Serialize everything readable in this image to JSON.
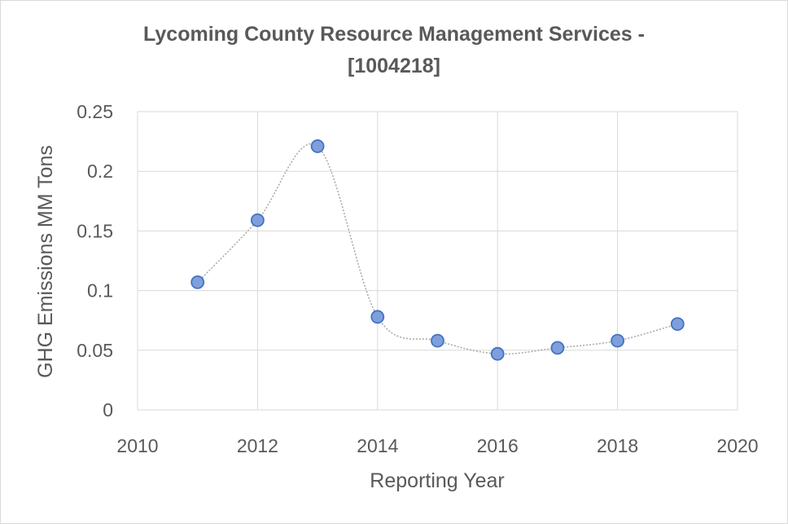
{
  "chart_data": {
    "type": "scatter",
    "title_line1": "Lycoming County Resource Management Services -",
    "title_line2": "[1004218]",
    "xlabel": "Reporting Year",
    "ylabel": "GHG Emissions MM Tons",
    "xlim": [
      2010,
      2020
    ],
    "ylim": [
      0,
      0.25
    ],
    "x_ticks": [
      "2010",
      "2012",
      "2014",
      "2016",
      "2018",
      "2020"
    ],
    "y_ticks": [
      "0",
      "0.05",
      "0.1",
      "0.15",
      "0.2",
      "0.25"
    ],
    "grid": true,
    "smoothed_line": true,
    "marker_color": "#7f9fdc",
    "marker_edge_color": "#4472c4",
    "line_color": "#a6a6a6",
    "series": [
      {
        "x": [
          2011,
          2012,
          2013,
          2014,
          2015,
          2016,
          2017,
          2018,
          2019
        ],
        "y": [
          0.107,
          0.159,
          0.221,
          0.078,
          0.058,
          0.047,
          0.052,
          0.058,
          0.072
        ]
      }
    ]
  }
}
